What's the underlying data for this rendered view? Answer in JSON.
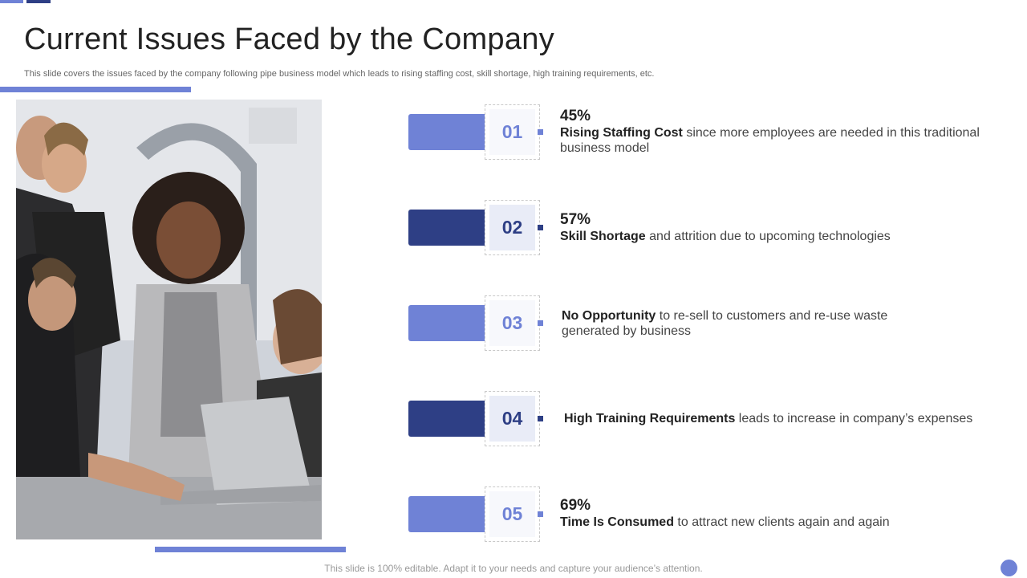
{
  "slide": {
    "title": "Current Issues Faced by the Company",
    "subtitle": "This slide covers the issues faced by the company following pipe business model which leads to rising staffing cost, skill shortage, high training requirements, etc.",
    "footer": "This slide is 100% editable. Adapt it to your needs and capture your audience’s attention."
  },
  "colors": {
    "accent_light": "#6f82d6",
    "accent_dark": "#2e3f85"
  },
  "photo": {
    "subject": "team-around-laptop-photo"
  },
  "issues": [
    {
      "number": "01",
      "percent": "45%",
      "bold": "Rising Staffing Cost",
      "text": " since more employees are needed in this traditional business model"
    },
    {
      "number": "02",
      "percent": "57%",
      "bold": "Skill Shortage",
      "text": " and attrition due to upcoming technologies"
    },
    {
      "number": "03",
      "percent": "",
      "bold": "No Opportunity",
      "text": " to re-sell to customers and re-use waste generated by business"
    },
    {
      "number": "04",
      "percent": "",
      "bold": "High Training Requirements",
      "text": " leads to increase in company’s expenses"
    },
    {
      "number": "05",
      "percent": "69%",
      "bold": "Time Is Consumed",
      "text": " to attract new clients again and again"
    }
  ]
}
